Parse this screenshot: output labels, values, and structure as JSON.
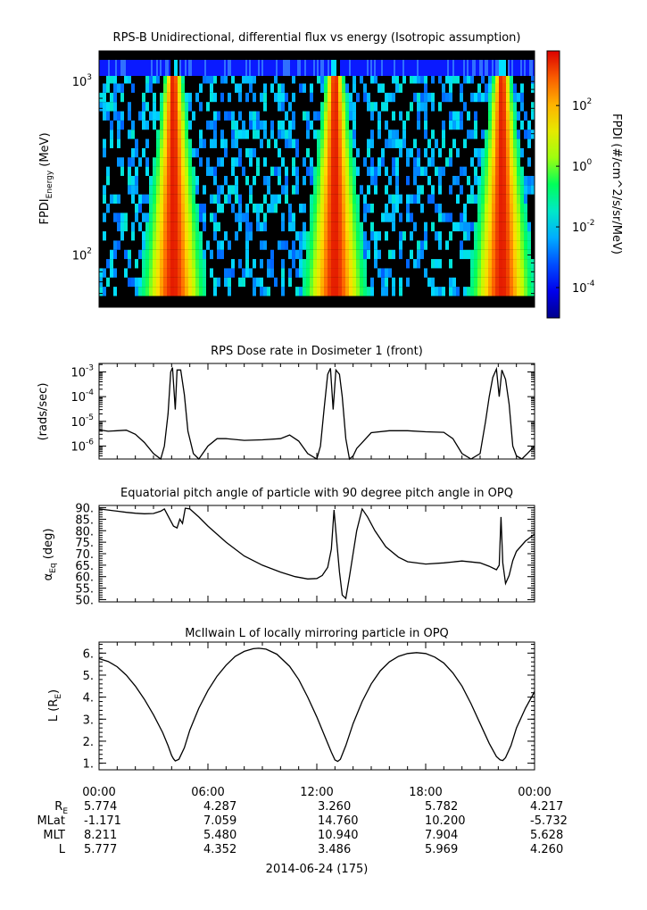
{
  "chart_data": [
    {
      "id": "panel1",
      "type": "heatmap",
      "title": "RPS-B  Unidirectional, differential flux vs energy (Isotropic assumption)",
      "ylabel_main": "FPDI",
      "ylabel_sub": "Energy",
      "ylabel_unit": "(MeV)",
      "yscale": "log",
      "ylim": [
        50,
        1500
      ],
      "yticks": [
        {
          "base": "10",
          "exp": "2",
          "value": 100
        },
        {
          "base": "10",
          "exp": "3",
          "value": 1000
        }
      ],
      "x_range_hours": [
        0,
        24
      ],
      "flux_peaks_hours": [
        4.1,
        13.0,
        22.2
      ],
      "colorbar": {
        "label": "FPDI (#/cm^2/s/sr/MeV)",
        "scale": "log",
        "range_log10": [
          -5,
          3.8
        ],
        "ticks": [
          {
            "base": "10",
            "exp": "2",
            "value": 2
          },
          {
            "base": "10",
            "exp": "0",
            "value": 0
          },
          {
            "base": "10",
            "exp": "-2",
            "value": -2
          },
          {
            "base": "10",
            "exp": "-4",
            "value": -4
          }
        ]
      }
    },
    {
      "id": "panel2",
      "type": "line",
      "title": "RPS  Dose rate in Dosimeter 1 (front)",
      "ylabel": "(rads/sec)",
      "yscale": "log",
      "ylim": [
        3e-07,
        0.0022
      ],
      "yticks": [
        {
          "base": "10",
          "exp": "-3",
          "value": 0.001
        },
        {
          "base": "10",
          "exp": "-4",
          "value": 0.0001
        },
        {
          "base": "10",
          "exp": "-5",
          "value": 1e-05
        },
        {
          "base": "10",
          "exp": "-6",
          "value": 1e-06
        }
      ],
      "x": [
        0,
        0.5,
        1.0,
        1.5,
        2.0,
        2.5,
        3.0,
        3.4,
        3.6,
        3.8,
        3.95,
        4.05,
        4.2,
        4.3,
        4.5,
        4.7,
        4.9,
        5.2,
        5.5,
        6.0,
        6.5,
        7.0,
        8.0,
        9.0,
        10.0,
        10.5,
        11.0,
        11.5,
        12.0,
        12.2,
        12.4,
        12.6,
        12.75,
        12.9,
        13.05,
        13.25,
        13.4,
        13.6,
        13.8,
        14.0,
        14.2,
        15.0,
        16.0,
        17.0,
        18.0,
        19.0,
        19.5,
        20.0,
        20.5,
        21.0,
        21.3,
        21.5,
        21.7,
        21.9,
        22.05,
        22.2,
        22.4,
        22.6,
        22.8,
        23.0,
        23.3,
        23.6,
        24.0
      ],
      "y": [
        4.5e-06,
        4e-06,
        4.2e-06,
        4.4e-06,
        3e-06,
        1.4e-06,
        5e-07,
        3e-07,
        1e-06,
        2e-05,
        0.001,
        0.0015,
        3e-05,
        0.0012,
        0.0012,
        0.00012,
        4e-06,
        5e-07,
        3e-07,
        1e-06,
        2e-06,
        2e-06,
        1.7e-06,
        1.8e-06,
        2e-06,
        2.8e-06,
        1.6e-06,
        5e-07,
        3e-07,
        1e-06,
        3e-05,
        0.0008,
        0.0014,
        3e-05,
        0.0012,
        0.0008,
        0.0001,
        2e-06,
        3e-07,
        4e-07,
        8e-07,
        3.5e-06,
        4.2e-06,
        4.2e-06,
        3.8e-06,
        3.6e-06,
        2e-06,
        5e-07,
        3e-07,
        5e-07,
        1e-05,
        0.0001,
        0.0006,
        0.0013,
        0.0001,
        0.0012,
        0.0005,
        5e-05,
        1e-06,
        4e-07,
        3e-07,
        5e-07,
        1e-06
      ]
    },
    {
      "id": "panel3",
      "type": "line",
      "title": "Equatorial pitch angle of particle with 90 degree pitch angle in OPQ",
      "ylabel_main": "α",
      "ylabel_sub": "Eq",
      "ylabel_unit": "(deg)",
      "ylim": [
        49,
        91
      ],
      "yticks": [
        {
          "label": "90.",
          "value": 90
        },
        {
          "label": "85.",
          "value": 85
        },
        {
          "label": "80.",
          "value": 80
        },
        {
          "label": "75.",
          "value": 75
        },
        {
          "label": "70.",
          "value": 70
        },
        {
          "label": "65.",
          "value": 65
        },
        {
          "label": "60.",
          "value": 60
        },
        {
          "label": "55.",
          "value": 55
        },
        {
          "label": "50.",
          "value": 50
        }
      ],
      "x": [
        0,
        0.5,
        1.0,
        1.5,
        2.0,
        2.5,
        3.0,
        3.4,
        3.6,
        3.9,
        4.1,
        4.3,
        4.45,
        4.6,
        4.75,
        5.0,
        5.5,
        6.0,
        7.0,
        8.0,
        9.0,
        10.0,
        10.8,
        11.5,
        12.0,
        12.3,
        12.6,
        12.8,
        12.95,
        13.1,
        13.25,
        13.4,
        13.6,
        13.8,
        14.2,
        14.5,
        14.8,
        15.2,
        15.8,
        16.5,
        17.0,
        18.0,
        19.0,
        20.0,
        21.0,
        21.5,
        21.9,
        22.05,
        22.15,
        22.25,
        22.4,
        22.6,
        22.8,
        23.0,
        23.5,
        24.0
      ],
      "y": [
        89.5,
        89.0,
        88.5,
        88.0,
        87.6,
        87.4,
        87.5,
        88.5,
        89.5,
        85.0,
        82.0,
        81.2,
        85.0,
        83.2,
        89.8,
        89.5,
        86.0,
        82.0,
        75.0,
        69.0,
        65.0,
        62.0,
        60.0,
        59.0,
        59.2,
        60.5,
        64.0,
        72.0,
        89.0,
        75.0,
        62.0,
        52.0,
        50.5,
        60.0,
        80.0,
        89.5,
        86.0,
        80.0,
        73.0,
        68.5,
        66.5,
        65.5,
        66.0,
        66.8,
        66.0,
        64.5,
        63.0,
        65.0,
        86.0,
        66.0,
        57.0,
        60.5,
        67.0,
        71.0,
        75.5,
        78.5
      ]
    },
    {
      "id": "panel4",
      "type": "line",
      "title": "McIlwain L of locally mirroring particle in OPQ",
      "ylabel_main": "L (R",
      "ylabel_sub": "E",
      "ylabel_end": ")",
      "ylim": [
        0.7,
        6.5
      ],
      "yticks": [
        {
          "label": "6.",
          "value": 6
        },
        {
          "label": "5.",
          "value": 5
        },
        {
          "label": "4.",
          "value": 4
        },
        {
          "label": "3.",
          "value": 3
        },
        {
          "label": "2.",
          "value": 2
        },
        {
          "label": "1.",
          "value": 1
        }
      ],
      "x": [
        0,
        0.5,
        1.0,
        1.5,
        2.0,
        2.5,
        3.0,
        3.5,
        3.8,
        4.0,
        4.1,
        4.2,
        4.4,
        4.7,
        5.0,
        5.5,
        6.0,
        6.5,
        7.0,
        7.5,
        8.0,
        8.5,
        8.8,
        9.2,
        9.8,
        10.5,
        11.0,
        11.5,
        12.0,
        12.5,
        12.8,
        13.0,
        13.15,
        13.3,
        13.6,
        14.0,
        14.5,
        15.0,
        15.5,
        16.0,
        16.5,
        17.0,
        17.5,
        18.0,
        18.5,
        19.0,
        19.5,
        20.0,
        20.5,
        21.0,
        21.5,
        21.9,
        22.1,
        22.25,
        22.4,
        22.7,
        23.0,
        23.5,
        24.0
      ],
      "y": [
        5.75,
        5.62,
        5.38,
        5.0,
        4.5,
        3.9,
        3.2,
        2.4,
        1.8,
        1.35,
        1.2,
        1.1,
        1.18,
        1.7,
        2.5,
        3.5,
        4.3,
        4.95,
        5.45,
        5.85,
        6.08,
        6.2,
        6.22,
        6.18,
        5.95,
        5.4,
        4.8,
        4.0,
        3.1,
        2.1,
        1.5,
        1.15,
        1.08,
        1.18,
        1.8,
        2.8,
        3.8,
        4.6,
        5.2,
        5.6,
        5.85,
        5.98,
        6.02,
        5.98,
        5.82,
        5.55,
        5.1,
        4.5,
        3.7,
        2.8,
        1.9,
        1.3,
        1.15,
        1.12,
        1.25,
        1.8,
        2.6,
        3.5,
        4.25
      ]
    }
  ],
  "x_axis": {
    "ticks": [
      "00:00",
      "06:00",
      "12:00",
      "18:00",
      "00:00"
    ],
    "date_label": "2014-06-24 (175)"
  },
  "ephemeris": [
    {
      "label_main": "R",
      "label_sub": "E",
      "values": [
        "5.774",
        "4.287",
        "3.260",
        "5.782",
        "4.217"
      ]
    },
    {
      "label_main": "MLat",
      "label_sub": "",
      "values": [
        "-1.171",
        "7.059",
        "14.760",
        "10.200",
        "-5.732"
      ]
    },
    {
      "label_main": "MLT",
      "label_sub": "",
      "values": [
        "8.211",
        "5.480",
        "10.940",
        "7.904",
        "5.628"
      ]
    },
    {
      "label_main": "L",
      "label_sub": "",
      "values": [
        "5.777",
        "4.352",
        "3.486",
        "5.969",
        "4.260"
      ]
    }
  ]
}
